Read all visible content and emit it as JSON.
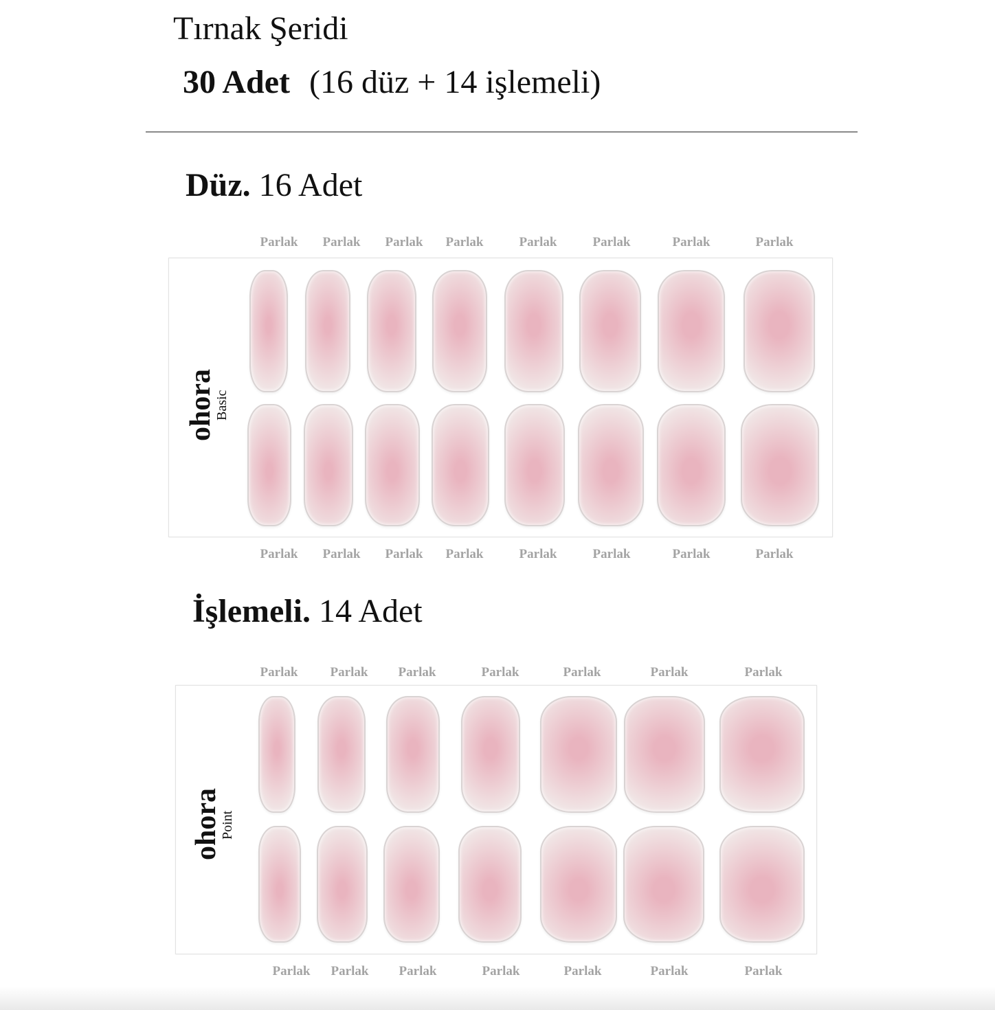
{
  "header": {
    "title": "Tırnak Şeridi",
    "count_bold": "30 Adet",
    "count_detail": "(16 düz + 14 işlemeli)"
  },
  "sections": [
    {
      "heading_bold": "Düz.",
      "heading_count": "16 Adet",
      "brand": "ohora",
      "brand_sub": "Basic",
      "top_labels": [
        "Parlak",
        "Parlak",
        "Parlak",
        "Parlak",
        "Parlak",
        "Parlak",
        "Parlak",
        "Parlak"
      ],
      "bottom_labels": [
        "Parlak",
        "Parlak",
        "Parlak",
        "Parlak",
        "Parlak",
        "Parlak",
        "Parlak",
        "Parlak"
      ]
    },
    {
      "heading_bold": "İşlemeli.",
      "heading_count": "14 Adet",
      "brand": "ohora",
      "brand_sub": "Point",
      "top_labels": [
        "Parlak",
        "Parlak",
        "Parlak",
        "Parlak",
        "Parlak",
        "Parlak",
        "Parlak"
      ],
      "bottom_labels": [
        "Parlak",
        "Parlak",
        "Parlak",
        "Parlak",
        "Parlak",
        "Parlak",
        "Parlak"
      ]
    }
  ],
  "colors": {
    "nail_pink": "#e9b4bf",
    "nail_edge": "#f1e6e6",
    "label_gray": "#a3a3a3"
  }
}
